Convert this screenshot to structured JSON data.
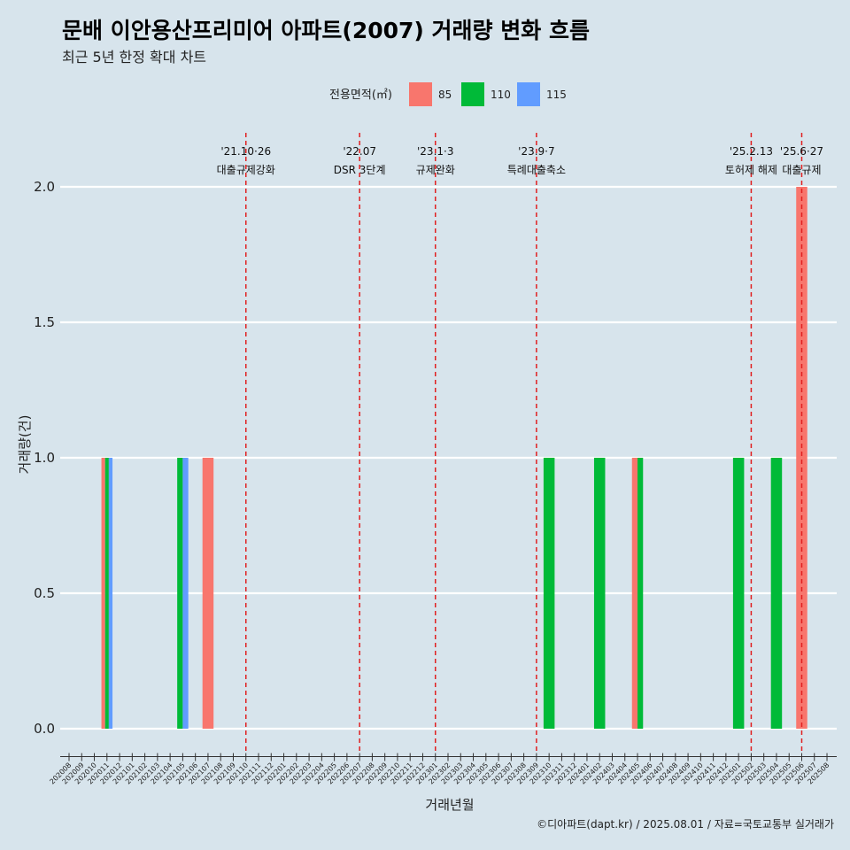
{
  "colors": {
    "background": "#d7e4ec",
    "grid": "#ffffff",
    "event_line": "#e02020",
    "series": {
      "85": "#f8766d",
      "110": "#00ba38",
      "115": "#619cff"
    }
  },
  "chart_data": {
    "type": "bar",
    "title": "문배 이안용산프리미어 아파트(2007) 거래량 변화 흐름",
    "subtitle": "최근 5년 한정 확대 차트",
    "xlabel": "거래년월",
    "ylabel": "거래량(건)",
    "caption": "©디아파트(dapt.kr) / 2025.08.01 / 자료=국토교통부 실거래가",
    "legend_title": "전용면적(㎡)",
    "legend_position": "top",
    "ylim": [
      -0.09,
      2.23
    ],
    "yticks": [
      "0.0",
      "0.5",
      "1.0",
      "1.5",
      "2.0"
    ],
    "categories": [
      "202008",
      "202009",
      "202010",
      "202011",
      "202012",
      "202101",
      "202102",
      "202103",
      "202104",
      "202105",
      "202106",
      "202107",
      "202108",
      "202109",
      "202110",
      "202111",
      "202112",
      "202201",
      "202202",
      "202203",
      "202204",
      "202205",
      "202206",
      "202207",
      "202208",
      "202209",
      "202210",
      "202211",
      "202212",
      "202301",
      "202302",
      "202303",
      "202304",
      "202305",
      "202306",
      "202307",
      "202308",
      "202309",
      "202310",
      "202311",
      "202312",
      "202401",
      "202402",
      "202403",
      "202404",
      "202405",
      "202406",
      "202407",
      "202408",
      "202409",
      "202410",
      "202411",
      "202412",
      "202501",
      "202502",
      "202503",
      "202504",
      "202505",
      "202506",
      "202507",
      "202508"
    ],
    "series": [
      {
        "name": "85",
        "points": [
          {
            "x": "202011",
            "y": 1
          },
          {
            "x": "202107",
            "y": 1
          },
          {
            "x": "202405",
            "y": 1
          },
          {
            "x": "202506",
            "y": 2
          }
        ]
      },
      {
        "name": "110",
        "points": [
          {
            "x": "202011",
            "y": 1
          },
          {
            "x": "202105",
            "y": 1
          },
          {
            "x": "202310",
            "y": 1
          },
          {
            "x": "202402",
            "y": 1
          },
          {
            "x": "202405",
            "y": 1
          },
          {
            "x": "202501",
            "y": 1
          },
          {
            "x": "202504",
            "y": 1
          }
        ]
      },
      {
        "name": "115",
        "points": [
          {
            "x": "202011",
            "y": 1
          },
          {
            "x": "202105",
            "y": 1
          }
        ]
      }
    ],
    "events": [
      {
        "x": "202110",
        "date": "'21.10·26",
        "label": "대출규제강화"
      },
      {
        "x": "202207",
        "date": "'22.07",
        "label": "DSR 3단계"
      },
      {
        "x": "202301",
        "date": "'23.1·3",
        "label": "규제완화"
      },
      {
        "x": "202309",
        "date": "'23.9·7",
        "label": "특례대출축소"
      },
      {
        "x": "202502",
        "date": "'25.2.13",
        "label": "토허제 해제"
      },
      {
        "x": "202506",
        "date": "'25.6·27",
        "label": "대출규제"
      }
    ]
  }
}
